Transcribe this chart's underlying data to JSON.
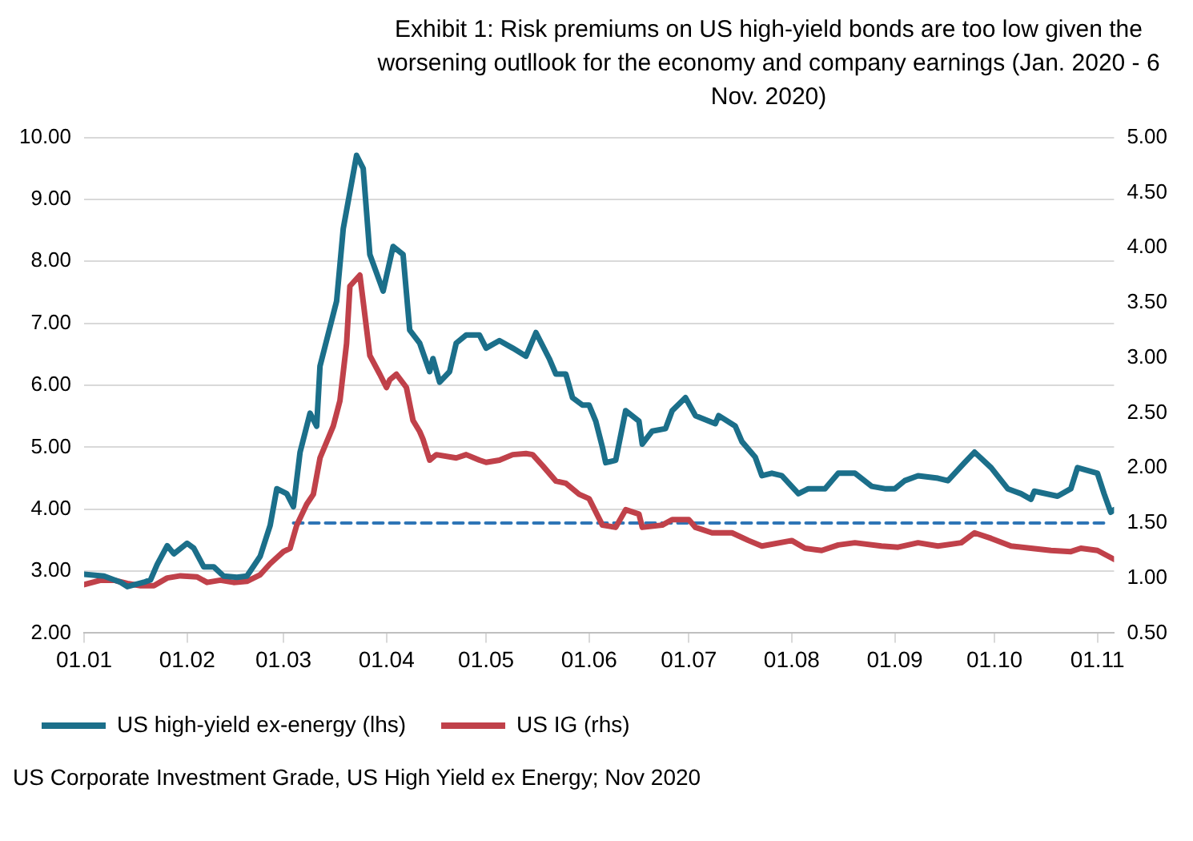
{
  "chart_data": {
    "type": "line",
    "title": "Exhibit 1: Risk premiums on US high-yield bonds are too low given the worsening outllook for the economy and company earnings (Jan. 2020 - 6 Nov. 2020)",
    "annotations": [
      "US Corporate Investment Grade,  US High Yield ex Energy; Nov 2020"
    ],
    "xlim": [
      "2020-01-01",
      "2020-11-06"
    ],
    "xticks": [
      {
        "value": "2020-01-01",
        "label": "01.01"
      },
      {
        "value": "2020-02-01",
        "label": "01.02"
      },
      {
        "value": "2020-03-01",
        "label": "01.03"
      },
      {
        "value": "2020-04-01",
        "label": "01.04"
      },
      {
        "value": "2020-05-01",
        "label": "01.05"
      },
      {
        "value": "2020-06-01",
        "label": "01.06"
      },
      {
        "value": "2020-07-01",
        "label": "01.07"
      },
      {
        "value": "2020-08-01",
        "label": "01.08"
      },
      {
        "value": "2020-09-01",
        "label": "01.09"
      },
      {
        "value": "2020-10-01",
        "label": "01.10"
      },
      {
        "value": "2020-11-01",
        "label": "01.11"
      }
    ],
    "ylim": [
      2,
      10
    ],
    "yticks": [
      {
        "value": 2,
        "label": "2.00"
      },
      {
        "value": 3,
        "label": "3.00"
      },
      {
        "value": 4,
        "label": "4.00"
      },
      {
        "value": 5,
        "label": "5.00"
      },
      {
        "value": 6,
        "label": "6.00"
      },
      {
        "value": 7,
        "label": "7.00"
      },
      {
        "value": 8,
        "label": "8.00"
      },
      {
        "value": 9,
        "label": "9.00"
      },
      {
        "value": 10,
        "label": "10.00"
      }
    ],
    "y2lim": [
      0.5,
      5
    ],
    "y2ticks": [
      {
        "value": 0.5,
        "label": "0.50"
      },
      {
        "value": 1,
        "label": "1.00"
      },
      {
        "value": 1.5,
        "label": "1.50"
      },
      {
        "value": 2,
        "label": "2.00"
      },
      {
        "value": 2.5,
        "label": "2.50"
      },
      {
        "value": 3,
        "label": "3.00"
      },
      {
        "value": 3.5,
        "label": "3.50"
      },
      {
        "value": 4,
        "label": "4.00"
      },
      {
        "value": 4.5,
        "label": "4.50"
      },
      {
        "value": 5,
        "label": "5.00"
      }
    ],
    "grid": "y",
    "legend": "bottom",
    "marker": "none",
    "series": [
      {
        "name": "US high-yield ex-energy (lhs)",
        "color": "#1b6f8a",
        "axis": "y",
        "x": [
          "2020-01-01",
          "2020-01-07",
          "2020-01-12",
          "2020-01-14",
          "2020-01-19",
          "2020-01-21",
          "2020-01-23",
          "2020-01-26",
          "2020-01-28",
          "2020-02-01",
          "2020-02-03",
          "2020-02-06",
          "2020-02-09",
          "2020-02-12",
          "2020-02-16",
          "2020-02-19",
          "2020-02-23",
          "2020-02-26",
          "2020-02-28",
          "2020-03-02",
          "2020-03-04",
          "2020-03-06",
          "2020-03-09",
          "2020-03-11",
          "2020-03-12",
          "2020-03-17",
          "2020-03-19",
          "2020-03-23",
          "2020-03-25",
          "2020-03-27",
          "2020-03-31",
          "2020-04-03",
          "2020-04-06",
          "2020-04-08",
          "2020-04-11",
          "2020-04-14",
          "2020-04-15",
          "2020-04-17",
          "2020-04-20",
          "2020-04-22",
          "2020-04-25",
          "2020-04-29",
          "2020-05-01",
          "2020-05-05",
          "2020-05-09",
          "2020-05-13",
          "2020-05-16",
          "2020-05-20",
          "2020-05-22",
          "2020-05-25",
          "2020-05-27",
          "2020-05-30",
          "2020-06-01",
          "2020-06-03",
          "2020-06-05",
          "2020-06-06",
          "2020-06-09",
          "2020-06-12",
          "2020-06-16",
          "2020-06-17",
          "2020-06-20",
          "2020-06-24",
          "2020-06-26",
          "2020-06-30",
          "2020-07-03",
          "2020-07-09",
          "2020-07-10",
          "2020-07-15",
          "2020-07-17",
          "2020-07-21",
          "2020-07-23",
          "2020-07-26",
          "2020-07-29",
          "2020-08-03",
          "2020-08-06",
          "2020-08-11",
          "2020-08-15",
          "2020-08-20",
          "2020-08-25",
          "2020-08-29",
          "2020-09-01",
          "2020-09-04",
          "2020-09-08",
          "2020-09-14",
          "2020-09-17",
          "2020-09-22",
          "2020-09-25",
          "2020-09-30",
          "2020-10-05",
          "2020-10-09",
          "2020-10-12",
          "2020-10-13",
          "2020-10-20",
          "2020-10-24",
          "2020-10-26",
          "2020-11-01",
          "2020-11-03",
          "2020-11-05",
          "2020-11-06"
        ],
        "values": [
          2.95,
          2.92,
          2.82,
          2.75,
          2.82,
          2.86,
          3.11,
          3.41,
          3.28,
          3.45,
          3.37,
          3.07,
          3.07,
          2.92,
          2.9,
          2.92,
          3.24,
          3.74,
          4.33,
          4.25,
          4.04,
          4.92,
          5.55,
          5.34,
          6.31,
          7.36,
          8.53,
          9.71,
          9.5,
          8.11,
          7.52,
          8.24,
          8.11,
          6.89,
          6.68,
          6.22,
          6.43,
          6.05,
          6.22,
          6.68,
          6.81,
          6.81,
          6.6,
          6.72,
          6.6,
          6.47,
          6.85,
          6.43,
          6.18,
          6.18,
          5.8,
          5.68,
          5.68,
          5.42,
          5.0,
          4.75,
          4.79,
          5.59,
          5.42,
          5.05,
          5.26,
          5.3,
          5.59,
          5.8,
          5.51,
          5.38,
          5.51,
          5.34,
          5.09,
          4.84,
          4.54,
          4.58,
          4.54,
          4.25,
          4.33,
          4.33,
          4.58,
          4.58,
          4.37,
          4.33,
          4.33,
          4.46,
          4.54,
          4.5,
          4.46,
          4.75,
          4.92,
          4.67,
          4.33,
          4.25,
          4.16,
          4.29,
          4.21,
          4.33,
          4.67,
          4.58,
          4.25,
          3.95,
          3.99
        ]
      },
      {
        "name": "US IG (rhs)",
        "color": "#c0414a",
        "axis": "y2",
        "x": [
          "2020-01-01",
          "2020-01-06",
          "2020-01-10",
          "2020-01-14",
          "2020-01-18",
          "2020-01-22",
          "2020-01-26",
          "2020-01-30",
          "2020-02-04",
          "2020-02-07",
          "2020-02-11",
          "2020-02-15",
          "2020-02-19",
          "2020-02-23",
          "2020-02-26",
          "2020-03-01",
          "2020-03-03",
          "2020-03-05",
          "2020-03-08",
          "2020-03-10",
          "2020-03-12",
          "2020-03-16",
          "2020-03-18",
          "2020-03-20",
          "2020-03-21",
          "2020-03-24",
          "2020-03-25",
          "2020-03-27",
          "2020-03-30",
          "2020-04-01",
          "2020-04-02",
          "2020-04-04",
          "2020-04-07",
          "2020-04-09",
          "2020-04-11",
          "2020-04-12",
          "2020-04-14",
          "2020-04-16",
          "2020-04-22",
          "2020-04-25",
          "2020-04-29",
          "2020-05-01",
          "2020-05-05",
          "2020-05-09",
          "2020-05-13",
          "2020-05-15",
          "2020-05-18",
          "2020-05-22",
          "2020-05-25",
          "2020-05-29",
          "2020-06-01",
          "2020-06-05",
          "2020-06-09",
          "2020-06-12",
          "2020-06-16",
          "2020-06-17",
          "2020-06-23",
          "2020-06-26",
          "2020-07-01",
          "2020-07-03",
          "2020-07-08",
          "2020-07-14",
          "2020-07-19",
          "2020-07-23",
          "2020-08-01",
          "2020-08-05",
          "2020-08-10",
          "2020-08-15",
          "2020-08-20",
          "2020-08-28",
          "2020-09-02",
          "2020-09-08",
          "2020-09-14",
          "2020-09-21",
          "2020-09-25",
          "2020-09-30",
          "2020-10-06",
          "2020-10-12",
          "2020-10-18",
          "2020-10-24",
          "2020-10-27",
          "2020-11-01",
          "2020-11-06"
        ],
        "values": [
          0.94,
          0.98,
          0.98,
          0.95,
          0.93,
          0.93,
          1.0,
          1.02,
          1.01,
          0.96,
          0.98,
          0.96,
          0.97,
          1.03,
          1.13,
          1.24,
          1.27,
          1.48,
          1.67,
          1.76,
          2.09,
          2.38,
          2.61,
          3.13,
          3.65,
          3.75,
          3.51,
          3.02,
          2.85,
          2.73,
          2.8,
          2.85,
          2.73,
          2.43,
          2.33,
          2.26,
          2.07,
          2.12,
          2.09,
          2.12,
          2.07,
          2.05,
          2.07,
          2.12,
          2.13,
          2.12,
          2.02,
          1.88,
          1.86,
          1.76,
          1.72,
          1.48,
          1.46,
          1.62,
          1.58,
          1.46,
          1.48,
          1.53,
          1.53,
          1.46,
          1.41,
          1.41,
          1.34,
          1.29,
          1.34,
          1.27,
          1.25,
          1.3,
          1.32,
          1.29,
          1.28,
          1.32,
          1.29,
          1.32,
          1.41,
          1.36,
          1.29,
          1.27,
          1.25,
          1.24,
          1.27,
          1.25,
          1.17
        ]
      },
      {
        "color": "#2e75b6",
        "axis": "y2",
        "line_style": "dashed",
        "x": [
          "2020-03-04",
          "2020-11-04"
        ],
        "values": [
          1.5,
          1.5
        ]
      }
    ]
  }
}
